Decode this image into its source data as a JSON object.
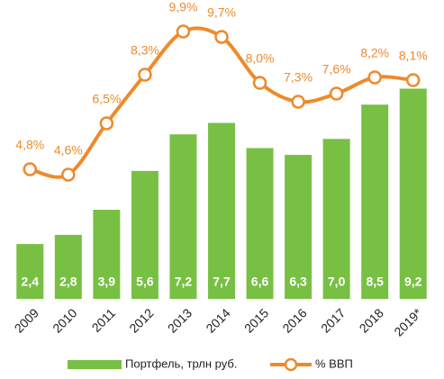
{
  "chart_data": {
    "type": "bar",
    "categories": [
      "2009",
      "2010",
      "2011",
      "2012",
      "2013",
      "2014",
      "2015",
      "2016",
      "2017",
      "2018",
      "2019*"
    ],
    "series": [
      {
        "name": "Портфель, трлн руб.",
        "type": "bar",
        "color": "#78c043",
        "values": [
          2.4,
          2.8,
          3.9,
          5.6,
          7.2,
          7.7,
          6.6,
          6.3,
          7.0,
          8.5,
          9.2
        ],
        "value_labels": [
          "2,4",
          "2,8",
          "3,9",
          "5,6",
          "7,2",
          "7,7",
          "6,6",
          "6,3",
          "7,0",
          "8,5",
          "9,2"
        ]
      },
      {
        "name": "% ВВП",
        "type": "line",
        "axis": "y2",
        "color": "#ee8a2b",
        "values": [
          4.8,
          4.6,
          6.5,
          8.3,
          9.9,
          9.7,
          8.0,
          7.3,
          7.6,
          8.2,
          8.1
        ],
        "value_labels": [
          "4,8%",
          "4,6%",
          "6,5%",
          "8,3%",
          "9,9%",
          "9,7%",
          "8,0%",
          "7,3%",
          "7,6%",
          "8,2%",
          "8,1%"
        ]
      }
    ],
    "ylim": [
      0,
      13
    ],
    "y2lim": [
      0,
      11
    ],
    "legend": "bottom"
  }
}
